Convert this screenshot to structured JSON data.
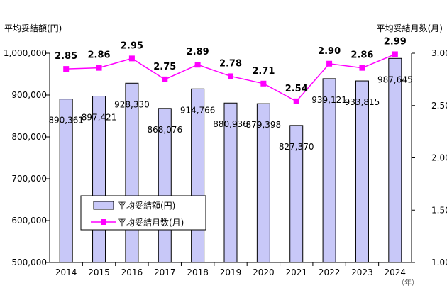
{
  "chart_data": {
    "type": "bar",
    "categories": [
      "2014",
      "2015",
      "2016",
      "2017",
      "2018",
      "2019",
      "2020",
      "2021",
      "2022",
      "2023",
      "2024"
    ],
    "x_unit": "（年）",
    "ylabel_left": "平均妥結額(円)",
    "ylabel_right": "平均妥結月数(月)",
    "ylim_left": [
      500000,
      1000000
    ],
    "ylim_right": [
      1.0,
      3.0
    ],
    "yticks_left": [
      "500,000",
      "600,000",
      "700,000",
      "800,000",
      "900,000",
      "1,000,000"
    ],
    "yticks_right": [
      "1.00",
      "1.50",
      "2.00",
      "2.50",
      "3.00"
    ],
    "series": [
      {
        "name": "平均妥結額(円)",
        "type": "bar",
        "axis": "left",
        "color": "#c8c8f8",
        "values": [
          890361,
          897421,
          928330,
          868076,
          914766,
          880936,
          879398,
          827370,
          939121,
          933815,
          987645
        ],
        "labels": [
          "890,361",
          "897,421",
          "928,330",
          "868,076",
          "914,766",
          "880,936",
          "879,398",
          "827,370",
          "939,121",
          "933,815",
          "987,645"
        ]
      },
      {
        "name": "平均妥結月数(月)",
        "type": "line",
        "axis": "right",
        "color": "#ff00ff",
        "values": [
          2.85,
          2.86,
          2.95,
          2.75,
          2.89,
          2.78,
          2.71,
          2.54,
          2.9,
          2.86,
          2.99
        ],
        "labels": [
          "2.85",
          "2.86",
          "2.95",
          "2.75",
          "2.89",
          "2.78",
          "2.71",
          "2.54",
          "2.90",
          "2.86",
          "2.99"
        ]
      }
    ],
    "legend": "inside-left",
    "grid": false
  }
}
